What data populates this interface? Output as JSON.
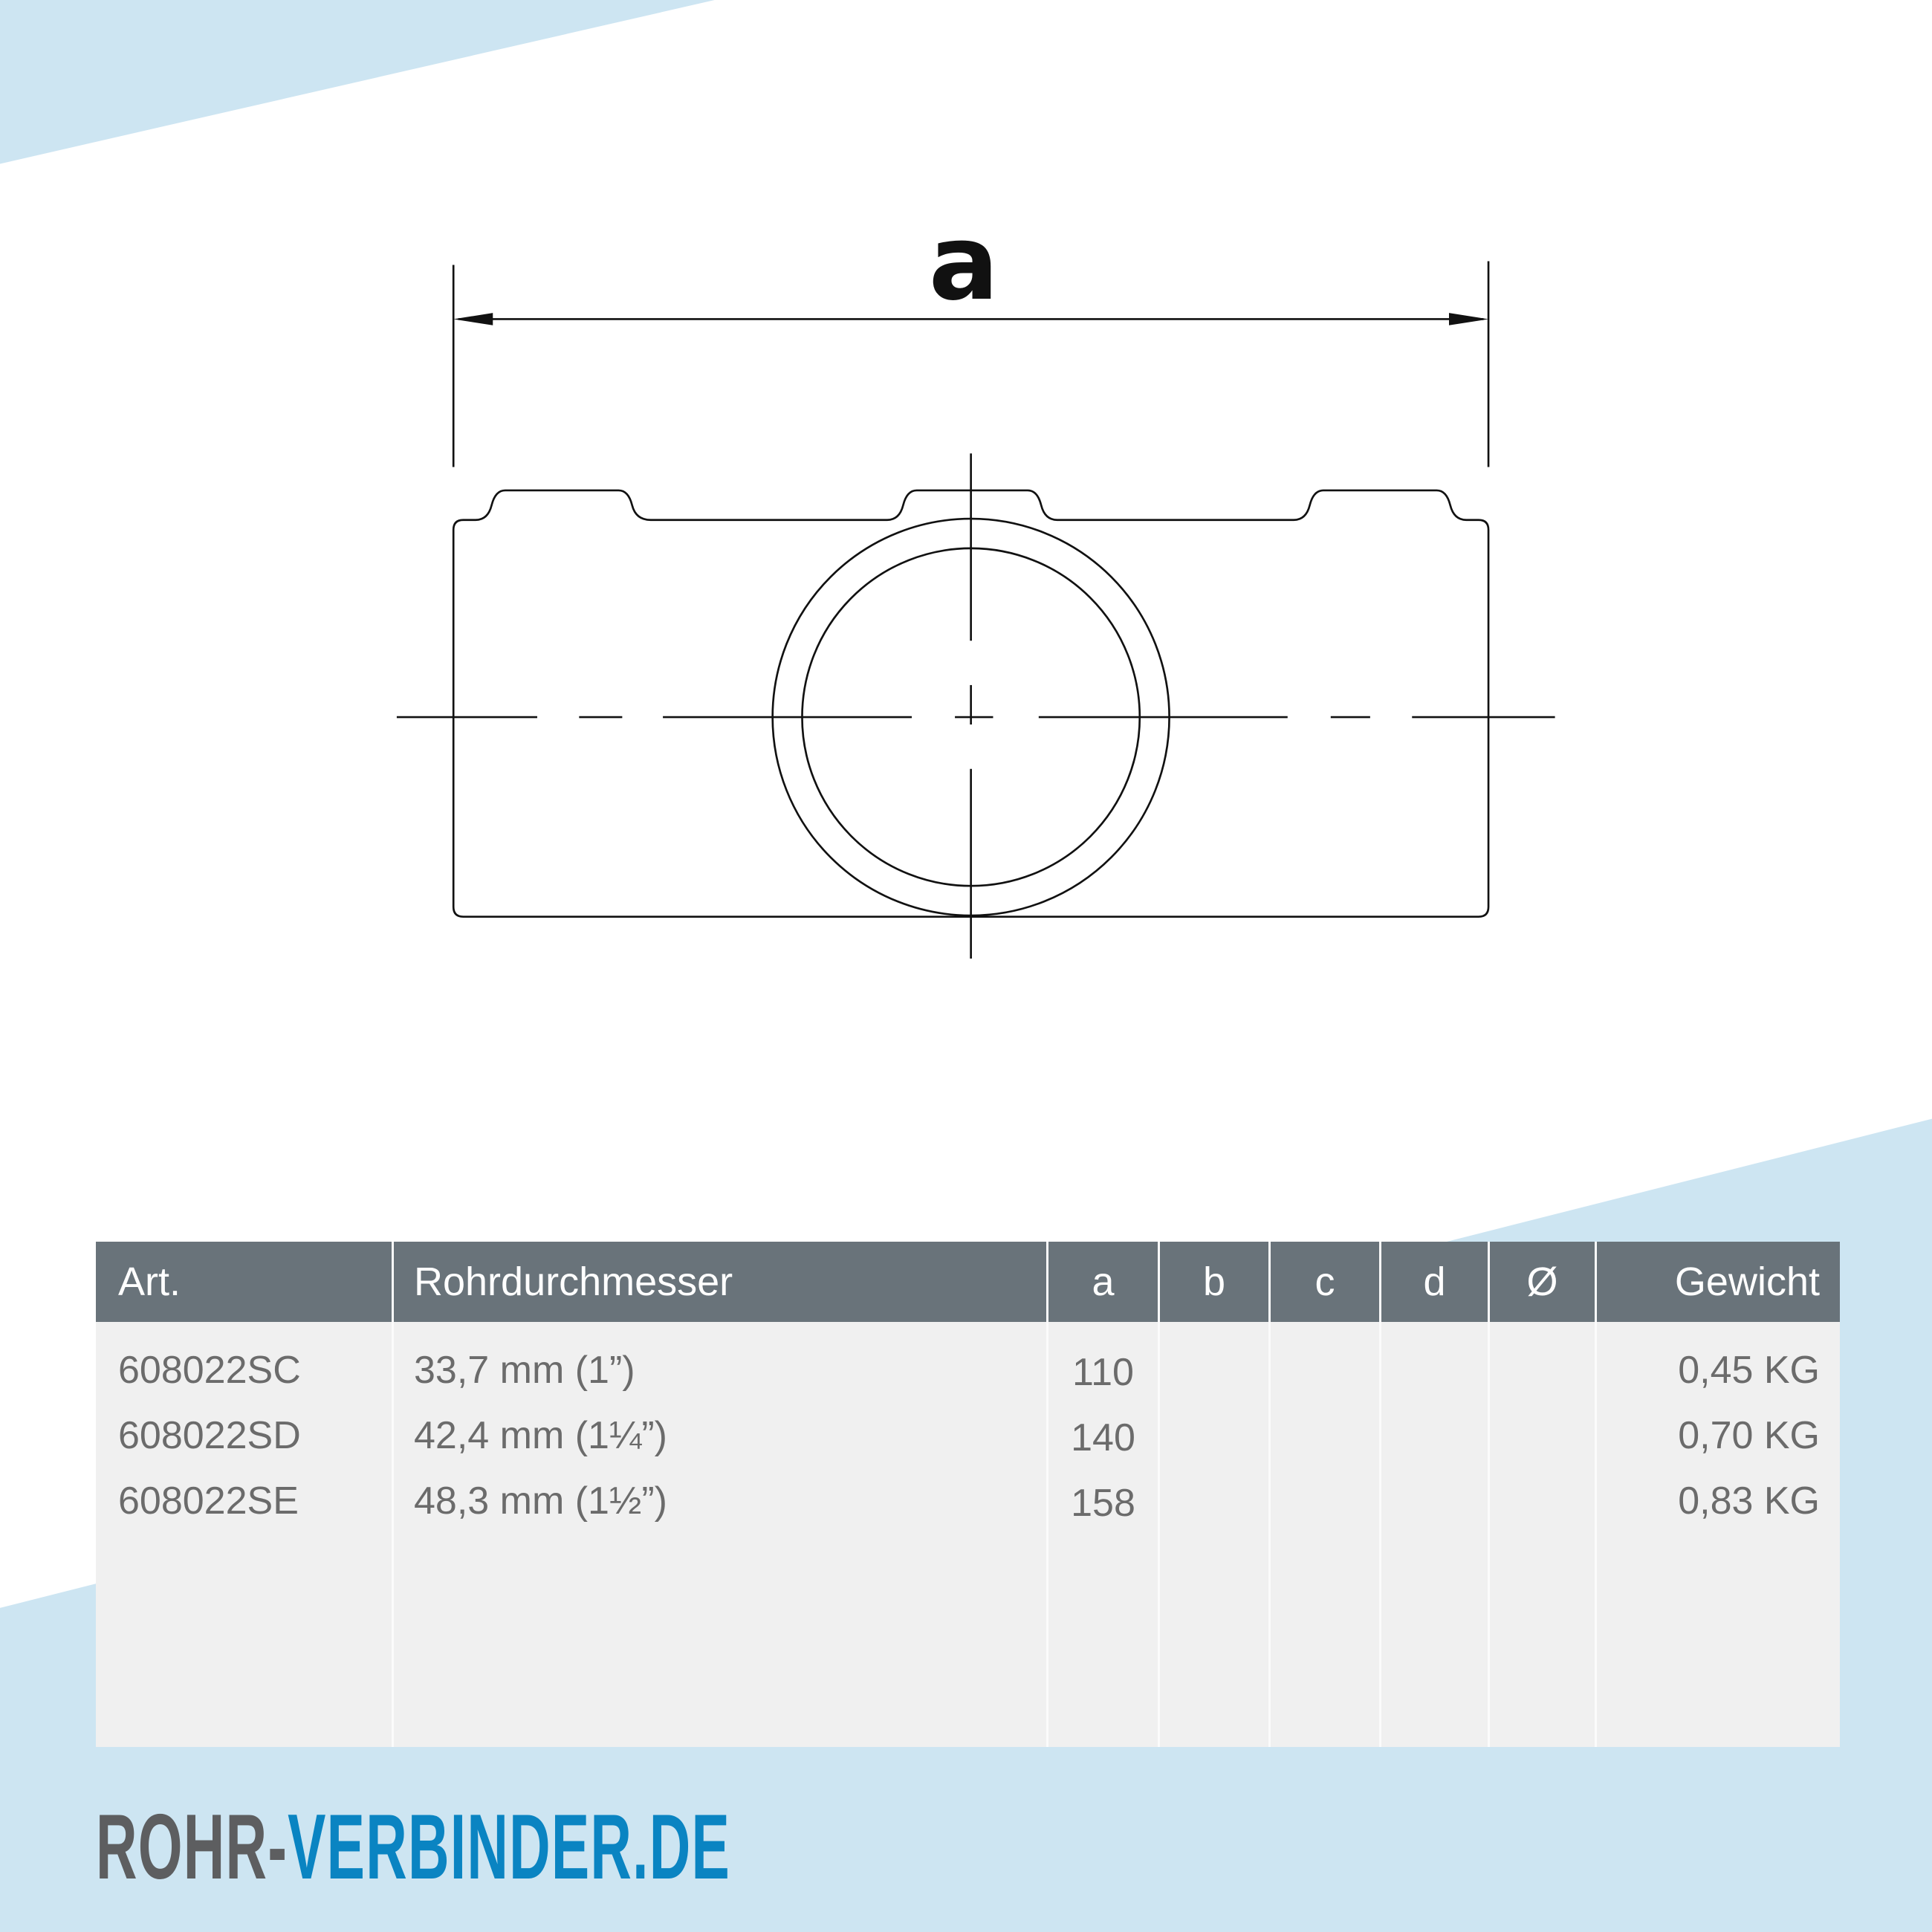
{
  "colors": {
    "background_accent": "#cde5f2",
    "table_header": "#69737a",
    "table_body": "#f0f0f0",
    "text": "#6b6b6b",
    "logo_gray": "#5d5e60",
    "logo_blue": "#0a84c2"
  },
  "drawing": {
    "dimension_label": "a"
  },
  "table": {
    "headers": [
      "Art.",
      "Rohrdurchmesser",
      "a",
      "b",
      "c",
      "d",
      "Ø",
      "Gewicht"
    ],
    "rows": [
      {
        "art": "608022SC",
        "diameter": "33,7 mm (1”)",
        "a": "110",
        "b": "",
        "c": "",
        "d": "",
        "o": "",
        "weight": "0,45 KG"
      },
      {
        "art": "608022SD",
        "diameter": "42,4 mm (1¼”)",
        "a": "140",
        "b": "",
        "c": "",
        "d": "",
        "o": "",
        "weight": "0,70 KG"
      },
      {
        "art": "608022SE",
        "diameter": "48,3 mm (1½”)",
        "a": "158",
        "b": "",
        "c": "",
        "d": "",
        "o": "",
        "weight": "0,83 KG"
      }
    ]
  },
  "logo": {
    "part1": "ROHR-",
    "part2": "VERBINDER.DE"
  }
}
